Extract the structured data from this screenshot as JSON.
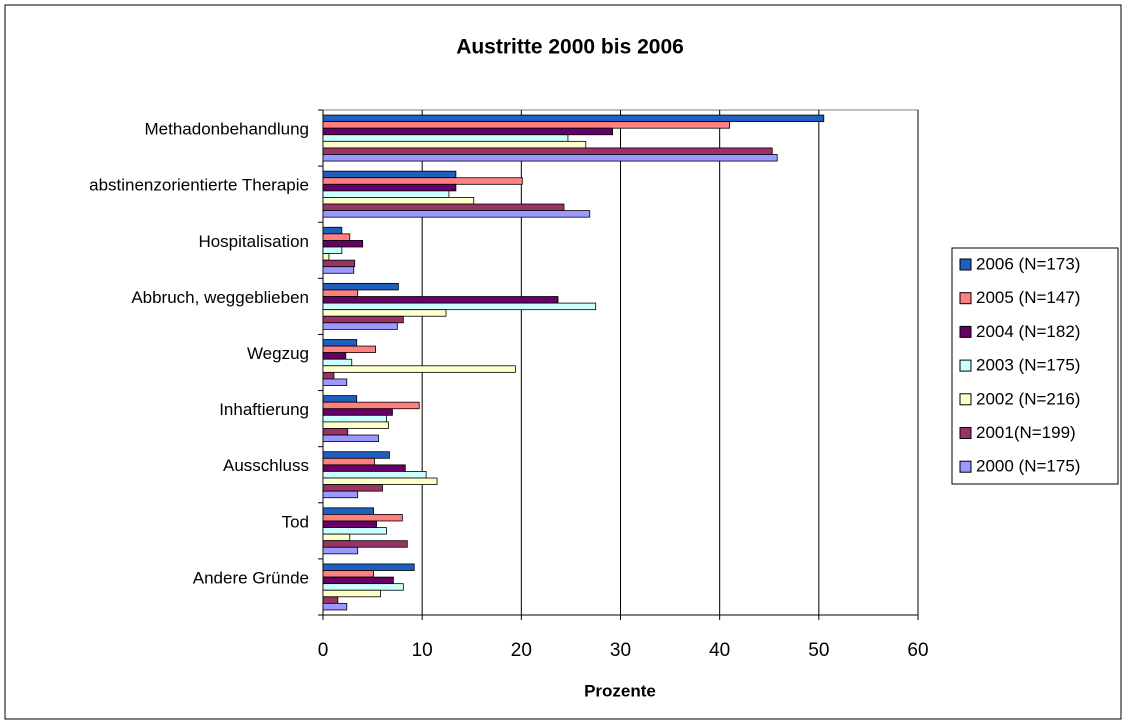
{
  "chart_data": {
    "type": "barh",
    "title": "Austritte 2000 bis 2006",
    "xlabel": "Prozente",
    "categories": [
      "Methadonbehandlung",
      "abstinenzorientierte Therapie",
      "Hospitalisation",
      "Abbruch, weggeblieben",
      "Wegzug",
      "Inhaftierung",
      "Ausschluss",
      "Tod",
      "Andere Gründe"
    ],
    "series": [
      {
        "name": "2006 (N=173)",
        "color": "#1f5fbf",
        "values": [
          50.5,
          13.4,
          1.9,
          7.6,
          3.4,
          3.4,
          6.7,
          5.1,
          9.2
        ]
      },
      {
        "name": "2005 (N=147)",
        "color": "#ff8080",
        "values": [
          41,
          20.1,
          2.7,
          3.5,
          5.3,
          9.7,
          5.2,
          8.0,
          5.1
        ]
      },
      {
        "name": "2004 (N=182)",
        "color": "#660066",
        "values": [
          29.2,
          13.4,
          4.0,
          23.7,
          2.3,
          7.0,
          8.3,
          5.4,
          7.1
        ]
      },
      {
        "name": "2003 (N=175)",
        "color": "#ccffff",
        "values": [
          24.7,
          12.7,
          1.9,
          27.5,
          2.9,
          6.4,
          10.4,
          6.4,
          8.1
        ]
      },
      {
        "name": "2002 (N=216)",
        "color": "#ffffcc",
        "values": [
          26.5,
          15.2,
          0.6,
          12.4,
          19.4,
          6.6,
          11.5,
          2.7,
          5.8
        ]
      },
      {
        "name": "2001(N=199)",
        "color": "#993366",
        "values": [
          45.3,
          24.3,
          3.2,
          8.1,
          1.1,
          2.5,
          6.0,
          8.5,
          1.5
        ]
      },
      {
        "name": "2000 (N=175)",
        "color": "#9999ff",
        "values": [
          45.8,
          26.9,
          3.1,
          7.5,
          2.4,
          5.6,
          3.5,
          3.5,
          2.4
        ]
      }
    ],
    "xlim": [
      0,
      60
    ],
    "xticks": [
      0,
      10,
      20,
      30,
      40,
      50,
      60
    ],
    "grid": true,
    "legend": "right"
  }
}
